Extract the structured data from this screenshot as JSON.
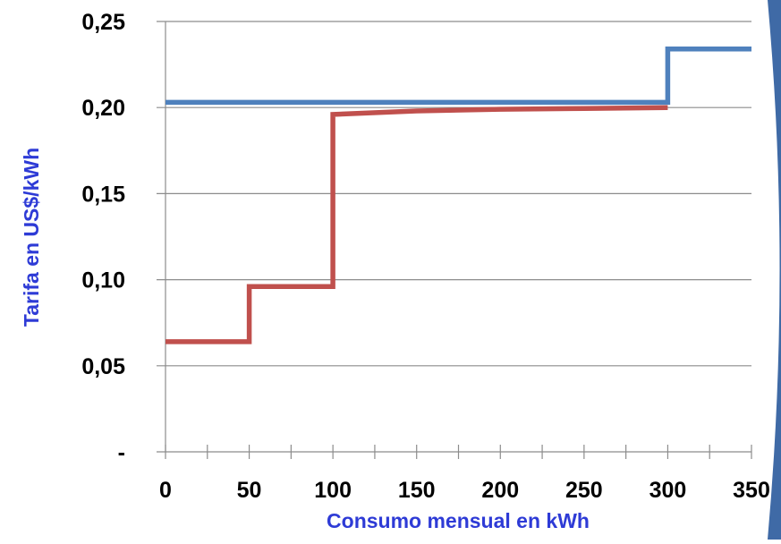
{
  "chart_data": {
    "type": "line",
    "title": "",
    "xlabel": "Consumo mensual en kWh",
    "ylabel": "Tarifa en US$/kWh",
    "xlim": [
      0,
      350
    ],
    "ylim": [
      0,
      0.25
    ],
    "x_ticks": [
      {
        "value": 0,
        "label": "0"
      },
      {
        "value": 50,
        "label": "50"
      },
      {
        "value": 100,
        "label": "100"
      },
      {
        "value": 150,
        "label": "150"
      },
      {
        "value": 200,
        "label": "200"
      },
      {
        "value": 250,
        "label": "250"
      },
      {
        "value": 300,
        "label": "300"
      },
      {
        "value": 350,
        "label": "350"
      }
    ],
    "y_ticks": [
      {
        "value": 0,
        "label": "-"
      },
      {
        "value": 0.05,
        "label": "0,05"
      },
      {
        "value": 0.1,
        "label": "0,10"
      },
      {
        "value": 0.15,
        "label": "0,15"
      },
      {
        "value": 0.2,
        "label": "0,20"
      },
      {
        "value": 0.25,
        "label": "0,25"
      }
    ],
    "grid": "horizontal",
    "legend": "none",
    "series": [
      {
        "color": "#4f81bd",
        "points": [
          [
            0,
            0.203
          ],
          [
            300,
            0.203
          ],
          [
            300,
            0.234
          ],
          [
            350,
            0.234
          ]
        ]
      },
      {
        "color": "#c0504d",
        "points": [
          [
            0,
            0.064
          ],
          [
            50,
            0.064
          ],
          [
            50,
            0.096
          ],
          [
            100,
            0.096
          ],
          [
            100,
            0.196
          ],
          [
            150,
            0.198
          ],
          [
            200,
            0.199
          ],
          [
            250,
            0.1995
          ],
          [
            300,
            0.2
          ]
        ]
      }
    ],
    "colors": {
      "xlabel": "#2e3bd6",
      "ylabel": "#2e3bd6",
      "grid": "#8c8c8c",
      "decoration": "#3f6aa6"
    }
  }
}
